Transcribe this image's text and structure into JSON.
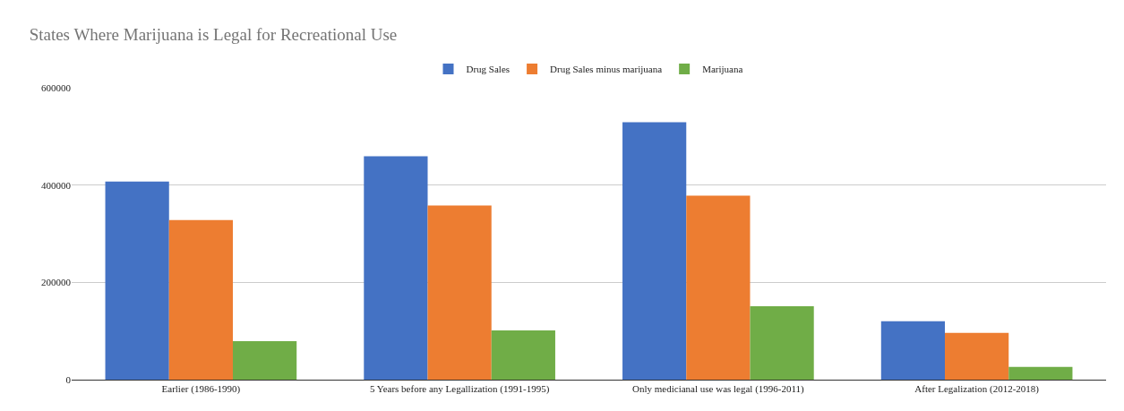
{
  "chart_data": {
    "type": "bar",
    "title": "States Where Marijuana is Legal for Recreational Use",
    "categories": [
      "Earlier (1986-1990)",
      "5 Years before any Legallization (1991-1995)",
      "Only medicianal use was legal (1996-2011)",
      "After Legalization (2012-2018)"
    ],
    "series": [
      {
        "name": "Drug Sales",
        "color": "#4472c4",
        "values": [
          407000,
          459000,
          529000,
          120000
        ]
      },
      {
        "name": "Drug Sales minus marijuana",
        "color": "#ed7d31",
        "values": [
          328000,
          358000,
          378000,
          96000
        ]
      },
      {
        "name": "Marijuana",
        "color": "#70ad47",
        "values": [
          79000,
          101000,
          151000,
          26000
        ]
      }
    ],
    "ylim": [
      0,
      600000
    ],
    "yticks": [
      0,
      200000,
      400000,
      600000
    ],
    "grid": "y",
    "legend": "top"
  }
}
